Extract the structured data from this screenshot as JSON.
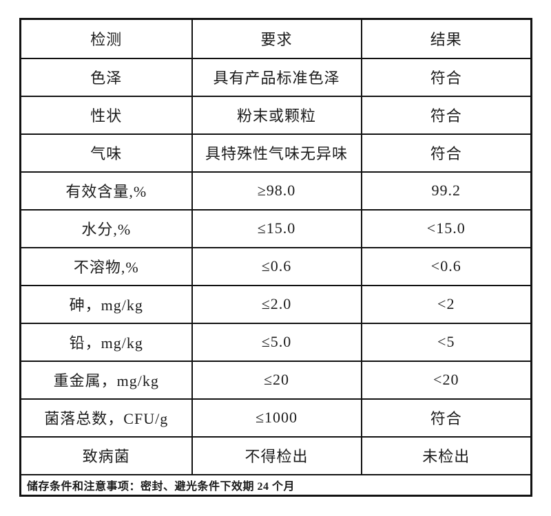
{
  "table": {
    "columns": [
      "检测",
      "要求",
      "结果"
    ],
    "rows": [
      {
        "test": "色泽",
        "requirement": "具有产品标准色泽",
        "result": "符合"
      },
      {
        "test": "性状",
        "requirement": "粉末或颗粒",
        "result": "符合"
      },
      {
        "test": "气味",
        "requirement": "具特殊性气味无异味",
        "result": "符合"
      },
      {
        "test": "有效含量,%",
        "requirement": "≥98.0",
        "result": "99.2"
      },
      {
        "test": "水分,%",
        "requirement": "≤15.0",
        "result": "<15.0"
      },
      {
        "test": "不溶物,%",
        "requirement": "≤0.6",
        "result": "<0.6"
      },
      {
        "test": "砷，mg/kg",
        "requirement": "≤2.0",
        "result": "<2"
      },
      {
        "test": "铅，mg/kg",
        "requirement": "≤5.0",
        "result": "<5"
      },
      {
        "test": "重金属，mg/kg",
        "requirement": "≤20",
        "result": "<20"
      },
      {
        "test": "菌落总数，CFU/g",
        "requirement": "≤1000",
        "result": "符合"
      },
      {
        "test": "致病菌",
        "requirement": "不得检出",
        "result": "未检出"
      }
    ],
    "footer": "储存条件和注意事项：密封、避光条件下效期 24 个月"
  },
  "colors": {
    "background": "#ffffff",
    "border": "#111111",
    "text": "#1b1b1b"
  }
}
